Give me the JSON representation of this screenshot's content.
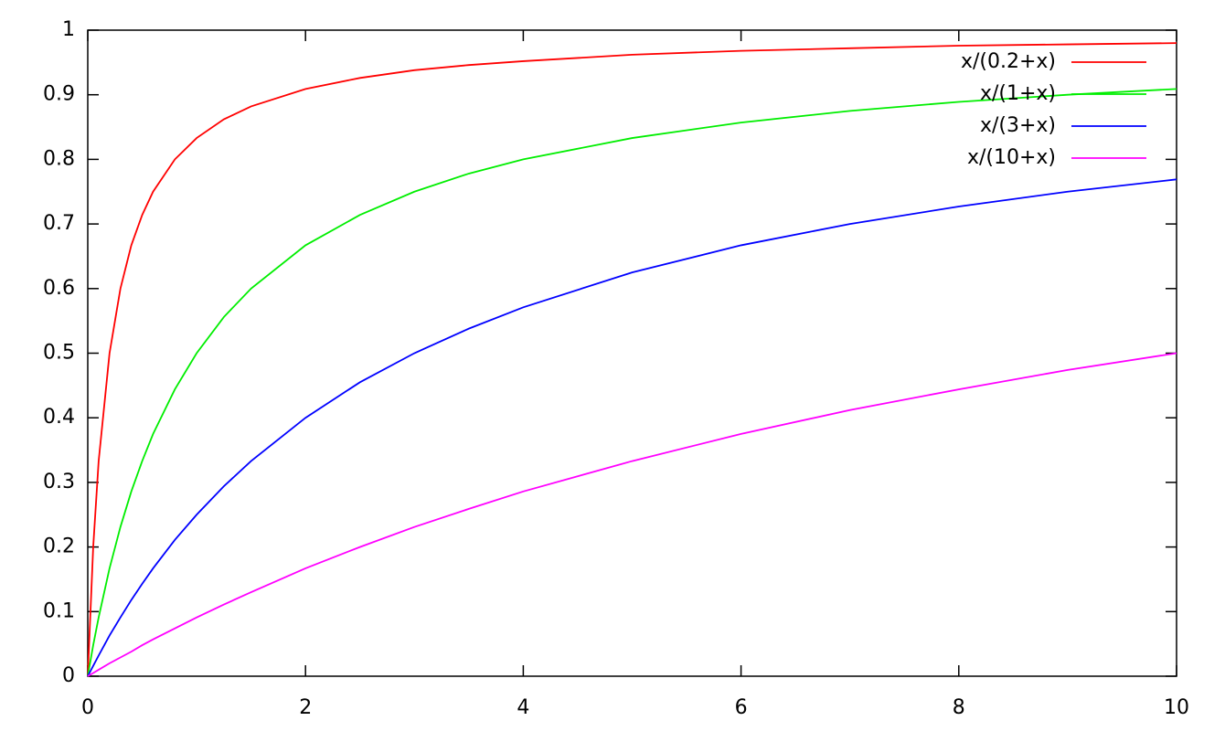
{
  "chart_data": {
    "type": "line",
    "x": [
      0,
      0.05,
      0.1,
      0.2,
      0.3,
      0.4,
      0.5,
      0.6,
      0.8,
      1,
      1.25,
      1.5,
      2,
      2.5,
      3,
      3.5,
      4,
      5,
      6,
      7,
      8,
      9,
      10
    ],
    "series": [
      {
        "name": "x/(0.2+x)",
        "color": "#ff0000",
        "values": [
          0,
          0.2,
          0.333,
          0.5,
          0.6,
          0.667,
          0.714,
          0.75,
          0.8,
          0.833,
          0.862,
          0.882,
          0.909,
          0.926,
          0.938,
          0.946,
          0.952,
          0.962,
          0.968,
          0.972,
          0.976,
          0.978,
          0.98
        ]
      },
      {
        "name": "x/(1+x)",
        "color": "#00ee00",
        "values": [
          0,
          0.048,
          0.091,
          0.167,
          0.231,
          0.286,
          0.333,
          0.375,
          0.444,
          0.5,
          0.556,
          0.6,
          0.667,
          0.714,
          0.75,
          0.778,
          0.8,
          0.833,
          0.857,
          0.875,
          0.889,
          0.9,
          0.909
        ]
      },
      {
        "name": "x/(3+x)",
        "color": "#0000ff",
        "values": [
          0,
          0.016,
          0.032,
          0.063,
          0.091,
          0.118,
          0.143,
          0.167,
          0.211,
          0.25,
          0.294,
          0.333,
          0.4,
          0.455,
          0.5,
          0.538,
          0.571,
          0.625,
          0.667,
          0.7,
          0.727,
          0.75,
          0.769
        ]
      },
      {
        "name": "x/(10+x)",
        "color": "#ff00ff",
        "values": [
          0,
          0.005,
          0.01,
          0.02,
          0.029,
          0.038,
          0.048,
          0.057,
          0.074,
          0.091,
          0.111,
          0.13,
          0.167,
          0.2,
          0.231,
          0.259,
          0.286,
          0.333,
          0.375,
          0.412,
          0.444,
          0.474,
          0.5
        ]
      }
    ],
    "xlim": [
      0,
      10
    ],
    "xticks": [
      0,
      2,
      4,
      6,
      8,
      10
    ],
    "ylim": [
      0,
      1
    ],
    "yticks": [
      0,
      0.1,
      0.2,
      0.3,
      0.4,
      0.5,
      0.6,
      0.7,
      0.8,
      0.9,
      1
    ],
    "grid": false,
    "legend": "top-right"
  }
}
